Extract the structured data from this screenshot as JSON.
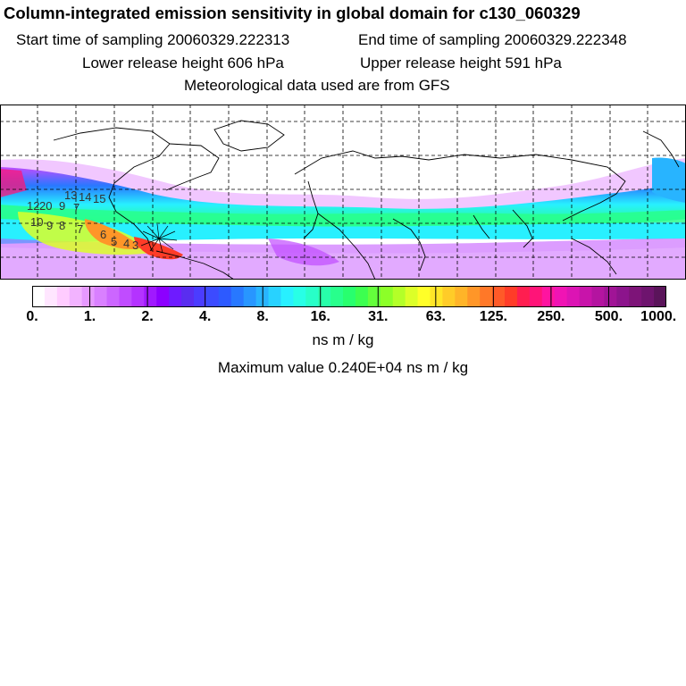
{
  "title": "Column-integrated emission sensitivity in global domain for c130_060329",
  "start_time": "Start time of sampling 20060329.222313",
  "end_time": "End time of sampling 20060329.222348",
  "lower_release": "Lower release height  606 hPa",
  "upper_release": "Upper release height  591 hPa",
  "met_data": "Meteorological data used are from GFS",
  "colorbar": {
    "tick_labels": [
      "0.",
      "1.",
      "2.",
      "4.",
      "8.",
      "16.",
      "31.",
      "63.",
      "125.",
      "250.",
      "500.",
      "1000."
    ],
    "colors": [
      "#ffffff",
      "#ffe6ff",
      "#ffccff",
      "#f2b3ff",
      "#e699ff",
      "#d980ff",
      "#cc66ff",
      "#c04cff",
      "#b433ff",
      "#a019ff",
      "#8c00ff",
      "#6e1bff",
      "#5a2df0",
      "#4b3cff",
      "#3c4bff",
      "#2d5aff",
      "#2878ff",
      "#2896ff",
      "#28b4ff",
      "#28d2ff",
      "#28f0ff",
      "#28ffe6",
      "#28ffc8",
      "#28ffaa",
      "#28ff8c",
      "#28ff6e",
      "#3cff50",
      "#64ff3c",
      "#8cff28",
      "#b4ff28",
      "#dcff28",
      "#ffff28",
      "#ffe628",
      "#ffcc28",
      "#ffb428",
      "#ff9628",
      "#ff7828",
      "#ff5a28",
      "#ff3c28",
      "#ff1e50",
      "#ff1478",
      "#ff14a0",
      "#f014b4",
      "#dc14b4",
      "#c814aa",
      "#b414a0",
      "#a01496",
      "#8c148c",
      "#7d1478",
      "#6e146e",
      "#5a145a"
    ]
  },
  "units": "ns m / kg",
  "max_value": "Maximum value  0.240E+04 ns m / kg",
  "track_labels": [
    "12",
    "20",
    "9",
    "13",
    "7",
    "14",
    "15",
    "10",
    "9",
    "8",
    "7",
    "6",
    "5",
    "4",
    "3"
  ]
}
